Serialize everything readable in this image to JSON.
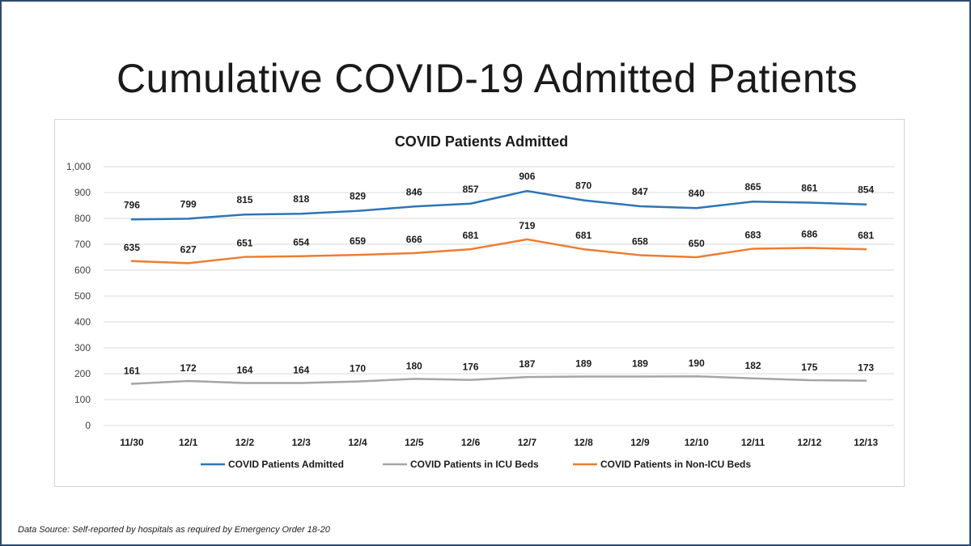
{
  "slide": {
    "title": "Cumulative COVID-19 Admitted Patients",
    "source_note": "Data Source: Self-reported by hospitals as required by Emergency Order 18-20"
  },
  "colors": {
    "border": "#2f4a6e",
    "grid": "#d9d9d9",
    "admitted": "#2e75b6",
    "icu": "#a5a5a5",
    "non_icu": "#ed7d31"
  },
  "chart_data": {
    "type": "line",
    "title": "COVID Patients Admitted",
    "xlabel": "",
    "ylabel": "",
    "categories": [
      "11/30",
      "12/1",
      "12/2",
      "12/3",
      "12/4",
      "12/5",
      "12/6",
      "12/7",
      "12/8",
      "12/9",
      "12/10",
      "12/11",
      "12/12",
      "12/13"
    ],
    "ylim": [
      0,
      1000
    ],
    "yticks": [
      "0",
      "100",
      "200",
      "300",
      "400",
      "500",
      "600",
      "700",
      "800",
      "900",
      "1,000"
    ],
    "grid": true,
    "legend_position": "bottom",
    "series": [
      {
        "name": "COVID Patients Admitted",
        "color": "#2e75b6",
        "values": [
          796,
          799,
          815,
          818,
          829,
          846,
          857,
          906,
          870,
          847,
          840,
          865,
          861,
          854
        ]
      },
      {
        "name": "COVID Patients in ICU Beds",
        "color": "#a5a5a5",
        "values": [
          161,
          172,
          164,
          164,
          170,
          180,
          176,
          187,
          189,
          189,
          190,
          182,
          175,
          173
        ]
      },
      {
        "name": "COVID Patients in Non-ICU Beds",
        "color": "#ed7d31",
        "values": [
          635,
          627,
          651,
          654,
          659,
          666,
          681,
          719,
          681,
          658,
          650,
          683,
          686,
          681
        ]
      }
    ]
  }
}
